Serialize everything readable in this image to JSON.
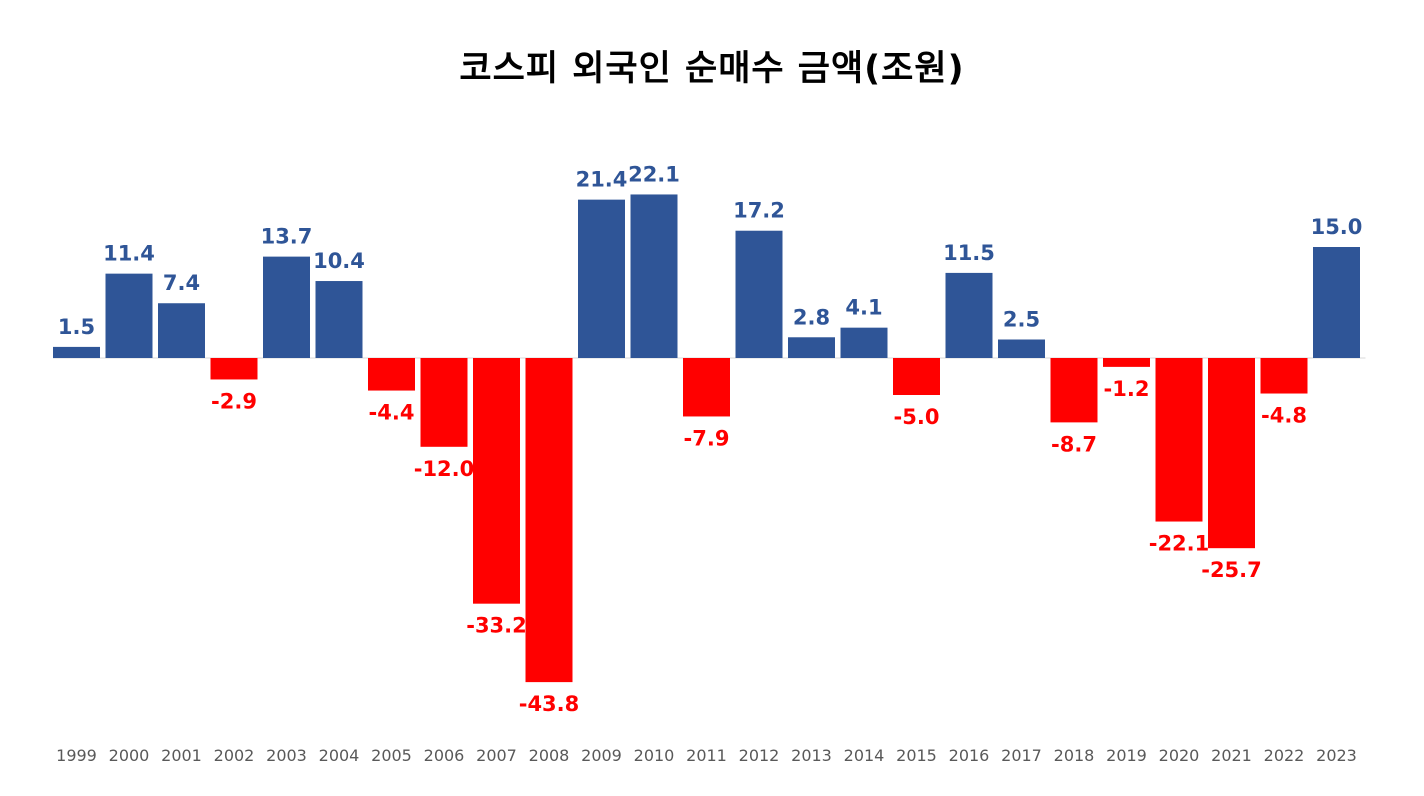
{
  "chart_data": {
    "type": "bar",
    "title": "코스피 외국인 순매수 금액(조원)",
    "xlabel": "",
    "ylabel": "",
    "categories": [
      "1999",
      "2000",
      "2001",
      "2002",
      "2003",
      "2004",
      "2005",
      "2006",
      "2007",
      "2008",
      "2009",
      "2010",
      "2011",
      "2012",
      "2013",
      "2014",
      "2015",
      "2016",
      "2017",
      "2018",
      "2019",
      "2020",
      "2021",
      "2022",
      "2023"
    ],
    "values": [
      1.5,
      11.4,
      7.4,
      -2.9,
      13.7,
      10.4,
      -4.4,
      -12.0,
      -33.2,
      -43.8,
      21.4,
      22.1,
      -7.9,
      17.2,
      2.8,
      4.1,
      -5.0,
      11.5,
      2.5,
      -8.7,
      -1.2,
      -22.1,
      -25.7,
      -4.8,
      15.0
    ],
    "ylim": [
      -43.8,
      22.1
    ],
    "grid": false,
    "legend": "none",
    "colors": {
      "positive": "#2F5597",
      "negative": "#FF0000",
      "tick": "#595959",
      "axis": "#D9D9D9"
    }
  }
}
